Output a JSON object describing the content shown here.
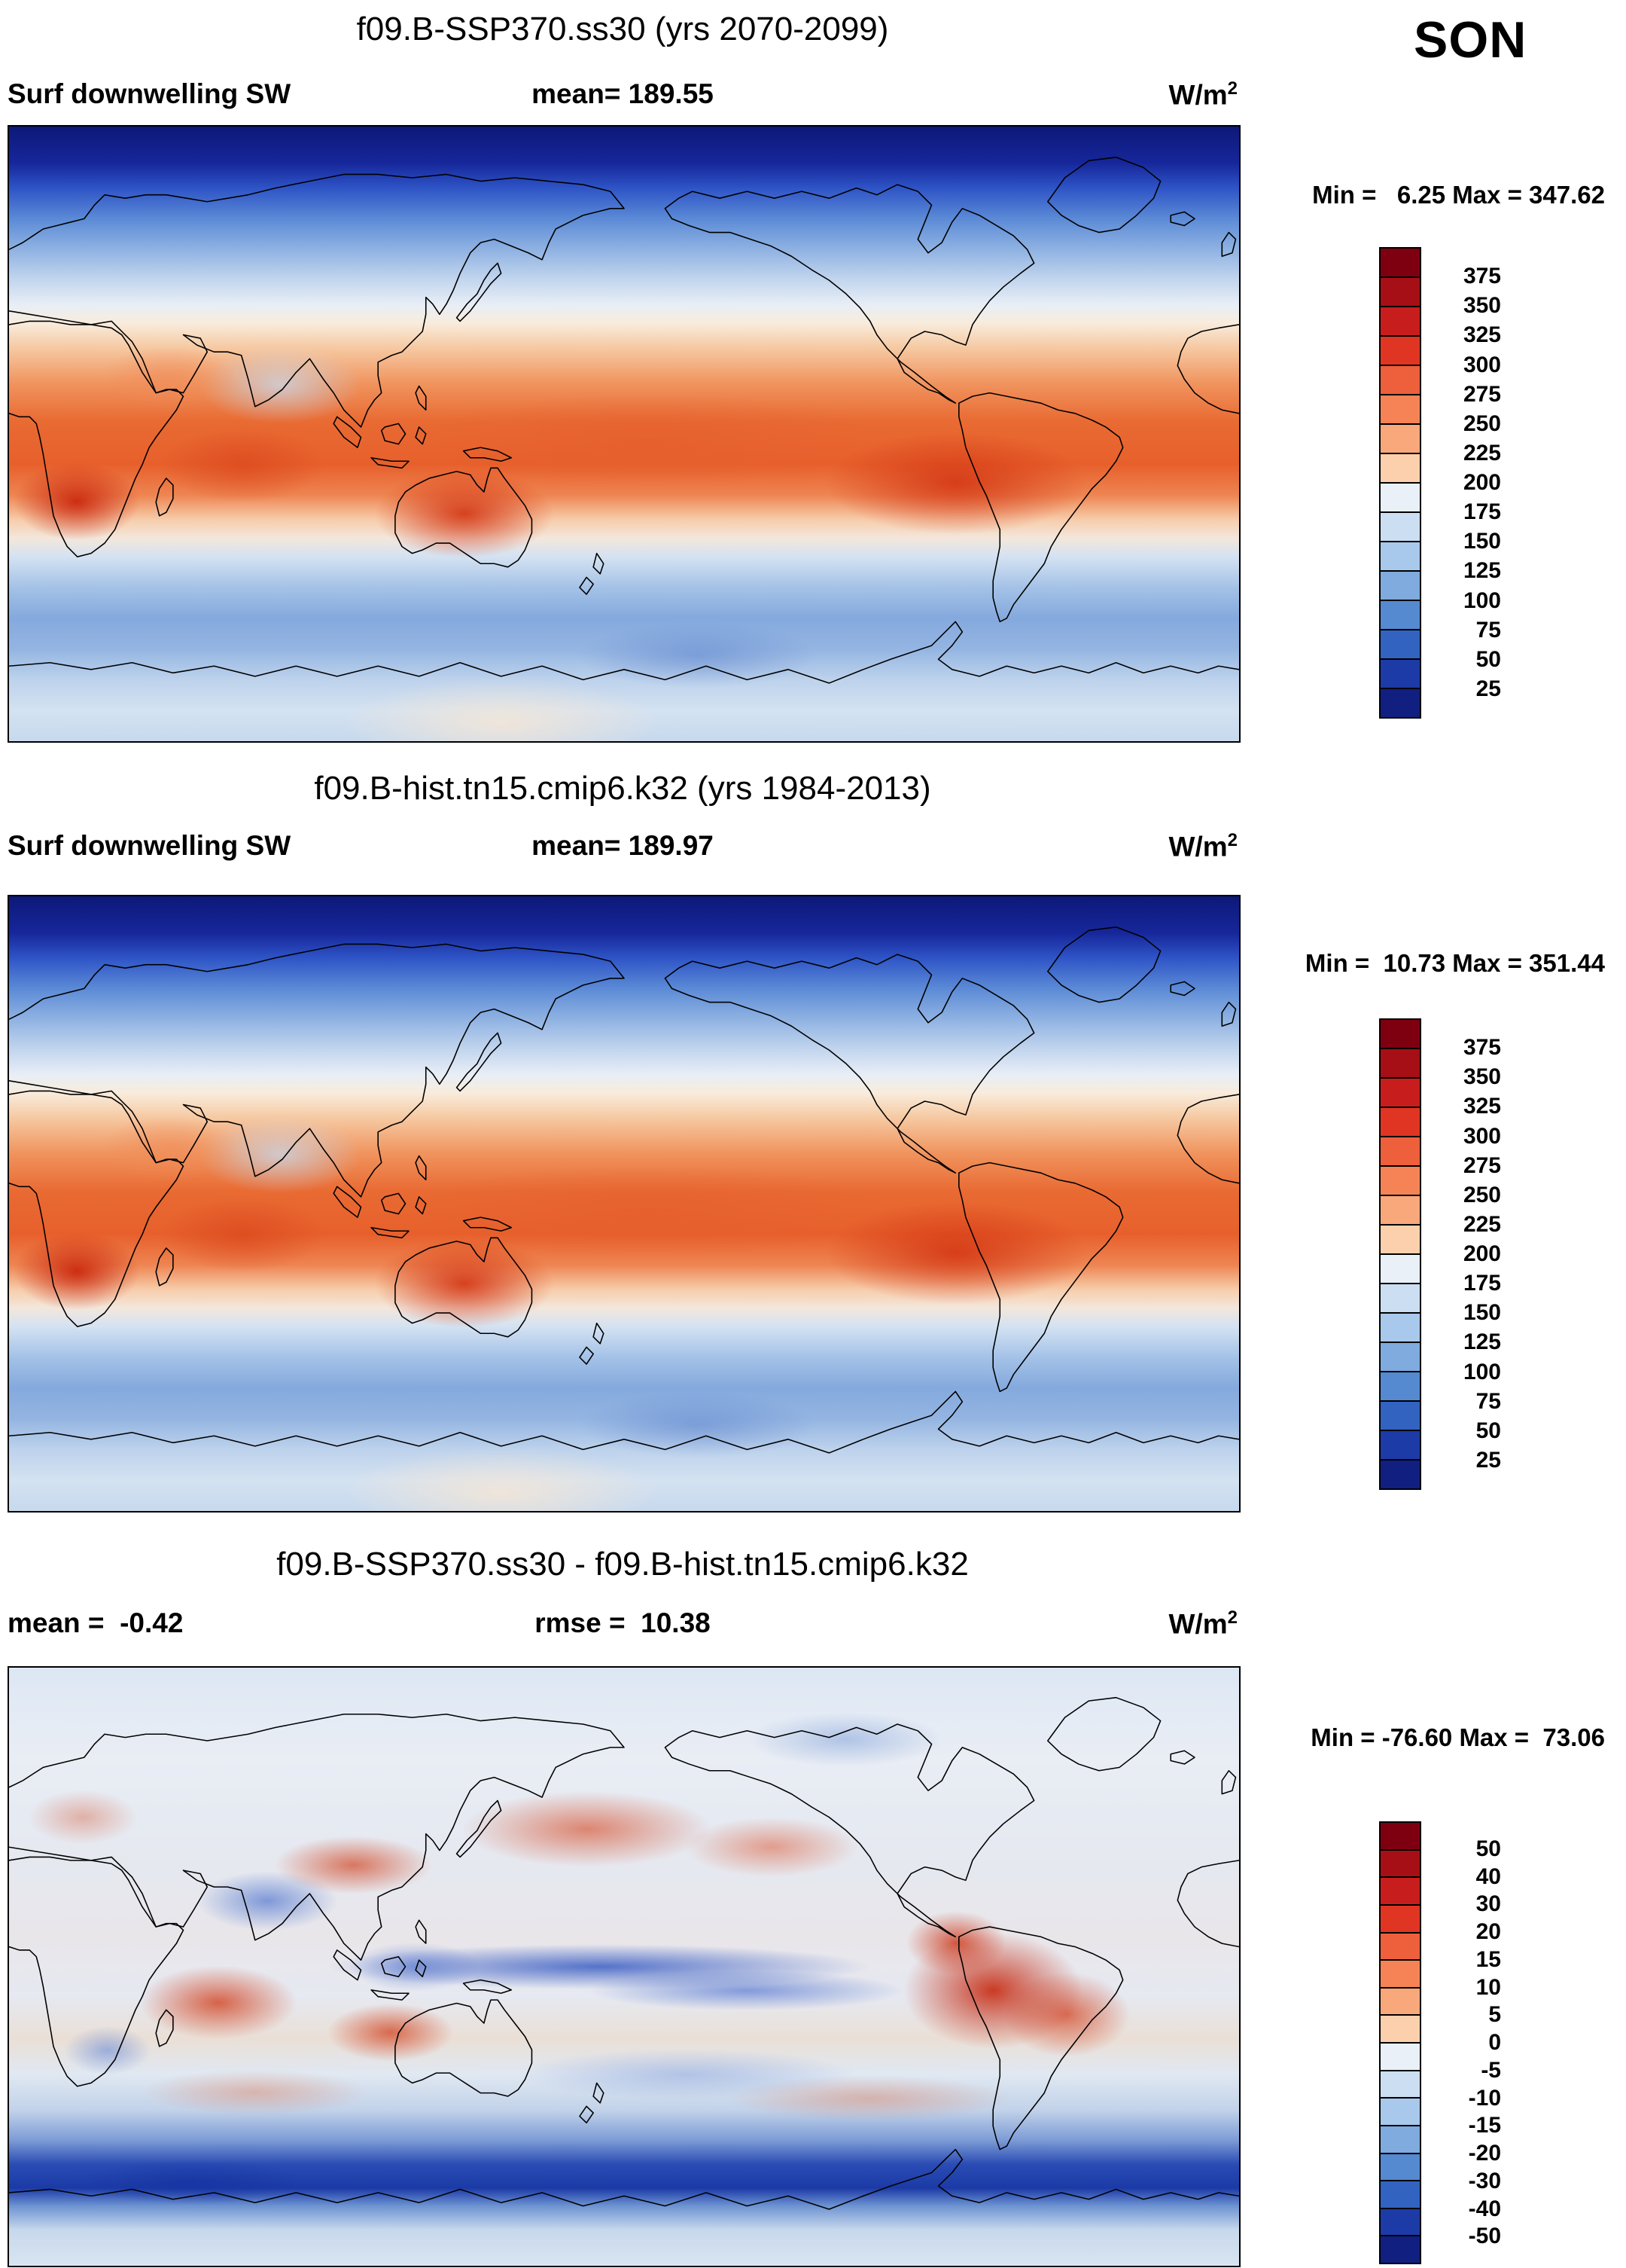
{
  "season_label": "SON",
  "panels": [
    {
      "title": "f09.B-SSP370.ss30 (yrs 2070-2099)",
      "header": {
        "left": "Surf downwelling SW",
        "center": "mean= 189.55",
        "units_base": "W/m",
        "units_exp": "2"
      },
      "minmax": "Min =   6.25 Max = 347.62",
      "colorbar": {
        "ticks": [
          "375",
          "350",
          "325",
          "300",
          "275",
          "250",
          "225",
          "200",
          "175",
          "150",
          "125",
          "100",
          "75",
          "50",
          "25"
        ],
        "colors": [
          "#7e0010",
          "#a50f15",
          "#c81d1d",
          "#e03523",
          "#ee5f3b",
          "#f58355",
          "#f9a87c",
          "#fcd0ac",
          "#e9f0f8",
          "#cbdef2",
          "#a8c8ec",
          "#7fabde",
          "#5589d0",
          "#3263c1",
          "#1d3ba6",
          "#101f80"
        ]
      }
    },
    {
      "title": "f09.B-hist.tn15.cmip6.k32 (yrs 1984-2013)",
      "header": {
        "left": "Surf downwelling SW",
        "center": "mean= 189.97",
        "units_base": "W/m",
        "units_exp": "2"
      },
      "minmax": "Min =  10.73 Max = 351.44",
      "colorbar": {
        "ticks": [
          "375",
          "350",
          "325",
          "300",
          "275",
          "250",
          "225",
          "200",
          "175",
          "150",
          "125",
          "100",
          "75",
          "50",
          "25"
        ],
        "colors": [
          "#7e0010",
          "#a50f15",
          "#c81d1d",
          "#e03523",
          "#ee5f3b",
          "#f58355",
          "#f9a87c",
          "#fcd0ac",
          "#e9f0f8",
          "#cbdef2",
          "#a8c8ec",
          "#7fabde",
          "#5589d0",
          "#3263c1",
          "#1d3ba6",
          "#101f80"
        ]
      }
    },
    {
      "title": "f09.B-SSP370.ss30 - f09.B-hist.tn15.cmip6.k32",
      "header": {
        "left": "mean =  -0.42",
        "center": "rmse =  10.38",
        "units_base": "W/m",
        "units_exp": "2"
      },
      "minmax": "Min = -76.60 Max =  73.06",
      "colorbar": {
        "ticks": [
          "50",
          "40",
          "30",
          "20",
          "15",
          "10",
          "5",
          "0",
          "-5",
          "-10",
          "-15",
          "-20",
          "-30",
          "-40",
          "-50"
        ],
        "colors": [
          "#7e0010",
          "#a50f15",
          "#c81d1d",
          "#e03523",
          "#ee5f3b",
          "#f58355",
          "#f9a87c",
          "#fcd0ac",
          "#e9f0f8",
          "#cbdef2",
          "#a8c8ec",
          "#7fabde",
          "#5589d0",
          "#3263c1",
          "#1d3ba6",
          "#101f80"
        ]
      }
    }
  ],
  "chart_data": [
    {
      "type": "heatmap",
      "title": "f09.B-SSP370.ss30 (yrs 2070-2099)",
      "variable": "Surf downwelling SW",
      "season": "SON",
      "units": "W/m2",
      "stats": {
        "mean": 189.55,
        "min": 6.25,
        "max": 347.62
      },
      "levels": [
        25,
        50,
        75,
        100,
        125,
        150,
        175,
        200,
        225,
        250,
        275,
        300,
        325,
        350,
        375
      ],
      "palette": "blue-white-red diverging, blue = low, red = high",
      "layout": "global latitude-longitude map, Pacific-centered, colorbar at right"
    },
    {
      "type": "heatmap",
      "title": "f09.B-hist.tn15.cmip6.k32 (yrs 1984-2013)",
      "variable": "Surf downwelling SW",
      "season": "SON",
      "units": "W/m2",
      "stats": {
        "mean": 189.97,
        "min": 10.73,
        "max": 351.44
      },
      "levels": [
        25,
        50,
        75,
        100,
        125,
        150,
        175,
        200,
        225,
        250,
        275,
        300,
        325,
        350,
        375
      ],
      "palette": "blue-white-red diverging, blue = low, red = high",
      "layout": "global latitude-longitude map, Pacific-centered, colorbar at right"
    },
    {
      "type": "heatmap",
      "title": "f09.B-SSP370.ss30 - f09.B-hist.tn15.cmip6.k32",
      "variable": "Surf downwelling SW difference",
      "season": "SON",
      "units": "W/m2",
      "stats": {
        "mean": -0.42,
        "rmse": 10.38,
        "min": -76.6,
        "max": 73.06
      },
      "levels": [
        -50,
        -40,
        -30,
        -20,
        -15,
        -10,
        -5,
        0,
        5,
        10,
        15,
        20,
        30,
        40,
        50
      ],
      "palette": "blue-white-red diverging, blue = negative, red = positive",
      "layout": "global latitude-longitude map, Pacific-centered, colorbar at right"
    }
  ]
}
